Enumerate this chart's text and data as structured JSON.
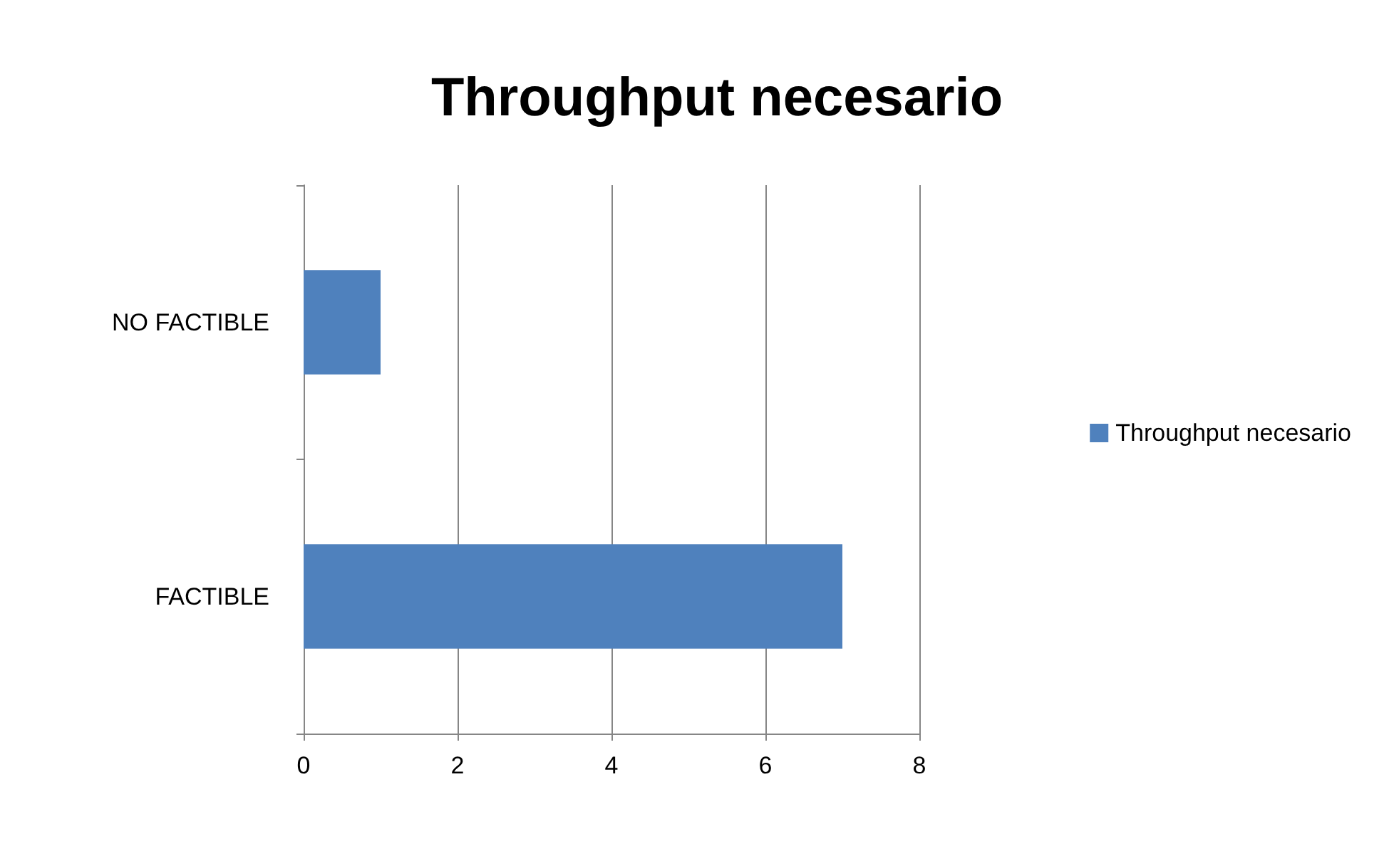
{
  "chart_data": {
    "type": "bar",
    "orientation": "horizontal",
    "title": "Throughput necesario",
    "categories": [
      "NO FACTIBLE",
      "FACTIBLE"
    ],
    "series": [
      {
        "name": "Throughput necesario",
        "color": "#4f81bd",
        "values": [
          1,
          7
        ]
      }
    ],
    "xlim": [
      0,
      8
    ],
    "xticks": [
      0,
      2,
      4,
      6,
      8
    ],
    "grid": "x",
    "legend": "right"
  }
}
